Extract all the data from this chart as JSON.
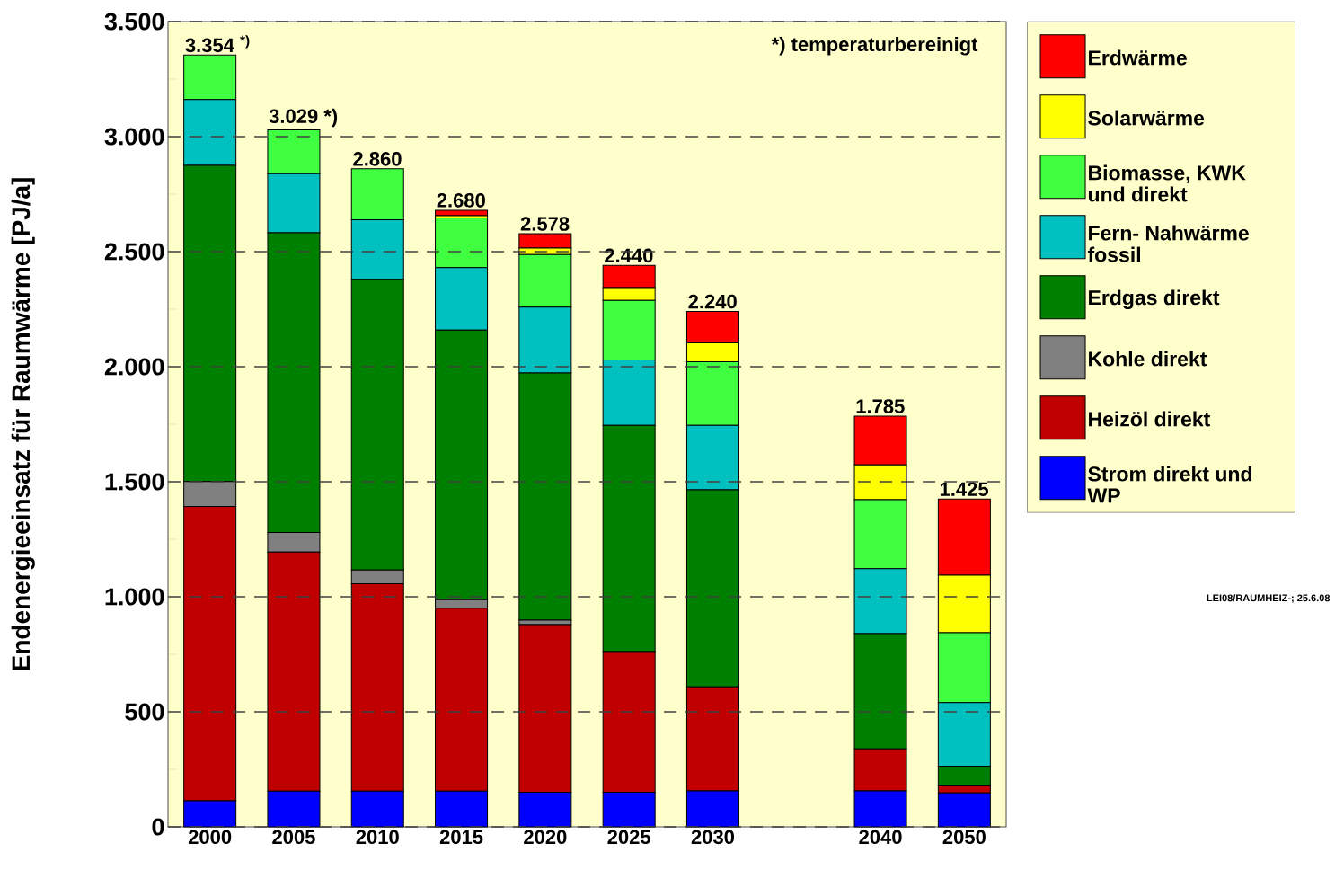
{
  "chart_data": {
    "type": "bar",
    "stacked": true,
    "ylabel": "Endenergieeinsatz für Raumwärme [PJ/a]",
    "categories": [
      "2000",
      "2005",
      "2010",
      "2015",
      "2020",
      "2025",
      "2030",
      null,
      "2040",
      "2050"
    ],
    "series": [
      {
        "name": "Strom direkt und WP",
        "color": "#0000ff",
        "values": [
          113,
          155,
          155,
          155,
          150,
          150,
          156,
          null,
          156,
          147
        ]
      },
      {
        "name": "Heizöl direkt",
        "color": "#c00000",
        "values": [
          1280,
          1039,
          902,
          795,
          729,
          612,
          452,
          null,
          183,
          35
        ]
      },
      {
        "name": "Kohle direkt",
        "color": "#808080",
        "values": [
          108,
          85,
          59,
          37,
          19,
          0,
          0,
          null,
          0,
          0
        ]
      },
      {
        "name": "Erdgas direkt",
        "color": "#008000",
        "values": [
          1374,
          1303,
          1264,
          1172,
          1075,
          983,
          857,
          null,
          501,
          82
        ]
      },
      {
        "name": "Fern- Nahwärme fossil",
        "color": "#00c0c0",
        "values": [
          286,
          257,
          259,
          272,
          286,
          284,
          280,
          null,
          282,
          276
        ]
      },
      {
        "name": "Biomasse, KWK und direkt",
        "color": "#40ff40",
        "values": [
          193,
          190,
          221,
          215,
          228,
          259,
          276,
          null,
          300,
          304
        ]
      },
      {
        "name": "Solarwärme",
        "color": "#ffff00",
        "values": [
          0,
          0,
          0,
          10,
          29,
          56,
          82,
          null,
          151,
          250
        ]
      },
      {
        "name": "Erdwärme",
        "color": "#ff0000",
        "values": [
          0,
          0,
          0,
          24,
          62,
          96,
          137,
          null,
          212,
          331
        ]
      }
    ],
    "totals": [
      "3.354 $^{*)}$",
      "3.029  *)",
      "2.860",
      "2.680",
      "2.578",
      "2.440",
      "2.240",
      null,
      "1.785",
      "1.425"
    ],
    "ylim": [
      0,
      3500
    ],
    "yticks": [
      {
        "value": 0,
        "label": "0"
      },
      {
        "value": 250,
        "label": null
      },
      {
        "value": 500,
        "label": "500"
      },
      {
        "value": 750,
        "label": null
      },
      {
        "value": 1000,
        "label": "1.000"
      },
      {
        "value": 1250,
        "label": null
      },
      {
        "value": 1500,
        "label": "1.500"
      },
      {
        "value": 1750,
        "label": null
      },
      {
        "value": 2000,
        "label": "2.000"
      },
      {
        "value": 2250,
        "label": null
      },
      {
        "value": 2500,
        "label": "2.500"
      },
      {
        "value": 2750,
        "label": null
      },
      {
        "value": 3000,
        "label": "3.000"
      },
      {
        "value": 3250,
        "label": null
      },
      {
        "value": 3500,
        "label": "3.500"
      }
    ],
    "grid": "y",
    "legend": "right",
    "annotations": [
      "*) temperaturbereinigt",
      "LEI08/RAUMHEIZ-; 25.6.08"
    ]
  }
}
